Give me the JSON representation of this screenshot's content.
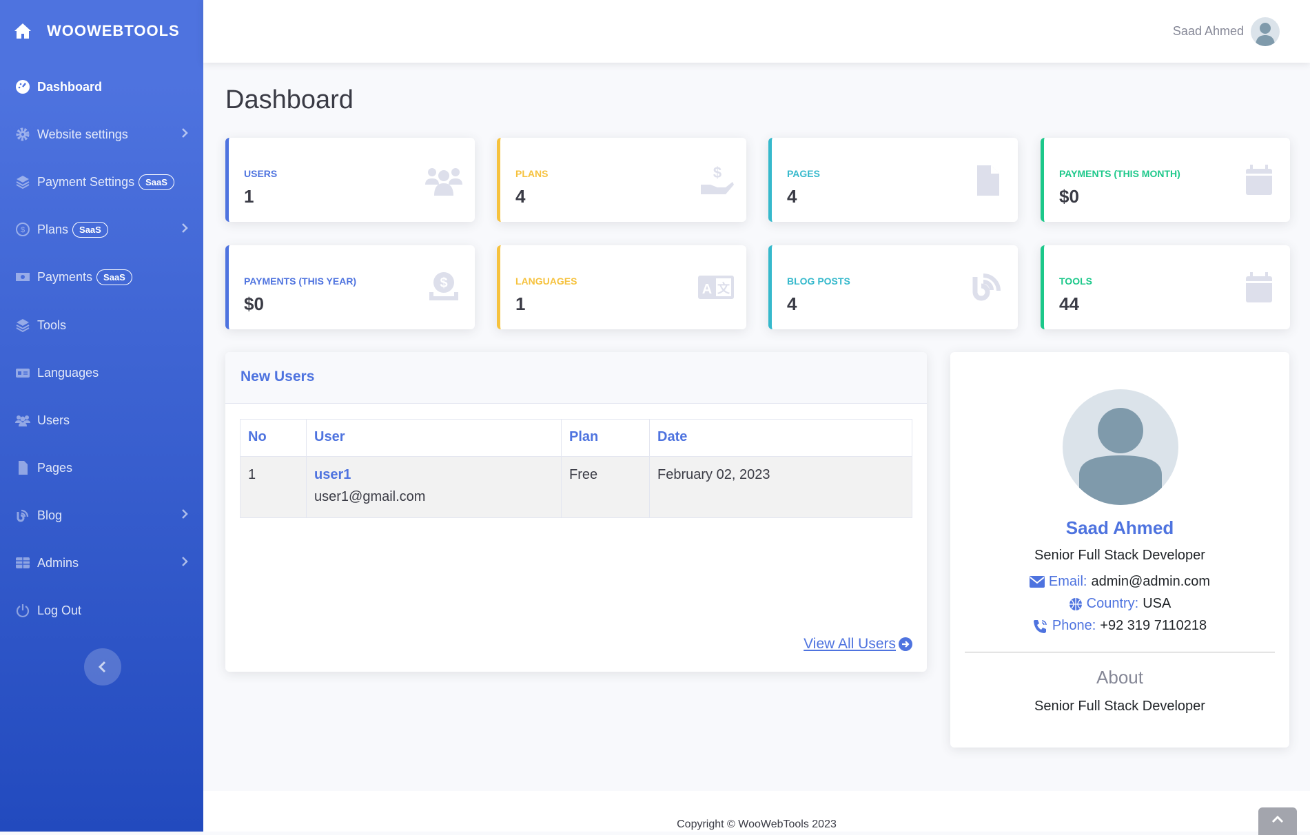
{
  "brand": {
    "name": "WOOWEBTOOLS",
    "icon": "home-icon"
  },
  "sidebar": {
    "items": [
      {
        "label": "Dashboard",
        "icon": "dashboard-icon",
        "active": true
      },
      {
        "label": "Website settings",
        "icon": "gear-icon",
        "chevron": true
      },
      {
        "label": "Payment Settings",
        "icon": "layers-icon",
        "badge": "SaaS"
      },
      {
        "label": "Plans",
        "icon": "dollar-circle-icon",
        "badge": "SaaS",
        "chevron": true
      },
      {
        "label": "Payments",
        "icon": "money-bill-icon",
        "badge": "SaaS"
      },
      {
        "label": "Tools",
        "icon": "layers-icon"
      },
      {
        "label": "Languages",
        "icon": "id-card-icon"
      },
      {
        "label": "Users",
        "icon": "users-icon"
      },
      {
        "label": "Pages",
        "icon": "file-icon"
      },
      {
        "label": "Blog",
        "icon": "blog-icon",
        "chevron": true
      },
      {
        "label": "Admins",
        "icon": "table-icon",
        "chevron": true
      },
      {
        "label": "Log Out",
        "icon": "power-icon"
      }
    ]
  },
  "topbar": {
    "user_name": "Saad Ahmed"
  },
  "page": {
    "title": "Dashboard"
  },
  "colors": {
    "primary": "#4e73df",
    "warning": "#f6c23e",
    "info": "#36b9cc",
    "success": "#1cc88a"
  },
  "cards": [
    {
      "label": "Users",
      "value": "1",
      "color": "#4e73df",
      "icon": "users-icon"
    },
    {
      "label": "Plans",
      "value": "4",
      "color": "#f6c23e",
      "icon": "hand-dollar-icon"
    },
    {
      "label": "Pages",
      "value": "4",
      "color": "#36b9cc",
      "icon": "file-icon"
    },
    {
      "label": "Payments (This Month)",
      "value": "$0",
      "color": "#1cc88a",
      "icon": "calendar-icon"
    },
    {
      "label": "Payments (This Year)",
      "value": "$0",
      "color": "#4e73df",
      "icon": "coin-icon"
    },
    {
      "label": "Languages",
      "value": "1",
      "color": "#f6c23e",
      "icon": "language-icon"
    },
    {
      "label": "Blog Posts",
      "value": "4",
      "color": "#36b9cc",
      "icon": "blog-icon"
    },
    {
      "label": "Tools",
      "value": "44",
      "color": "#1cc88a",
      "icon": "calendar-icon"
    }
  ],
  "new_users": {
    "title": "New Users",
    "columns": [
      "No",
      "User",
      "Plan",
      "Date"
    ],
    "rows": [
      {
        "no": "1",
        "user": "user1",
        "email": "user1@gmail.com",
        "plan": "Free",
        "date": "February 02, 2023"
      }
    ],
    "view_all": "View All Users"
  },
  "profile": {
    "name": "Saad Ahmed",
    "role": "Senior Full Stack Developer",
    "email_label": "Email:",
    "email": "admin@admin.com",
    "country_label": "Country:",
    "country": "USA",
    "phone_label": "Phone:",
    "phone": "+92 319 7110218",
    "about_title": "About",
    "about": "Senior Full Stack Developer"
  },
  "footer": {
    "copyright": "Copyright © WooWebTools 2023"
  }
}
